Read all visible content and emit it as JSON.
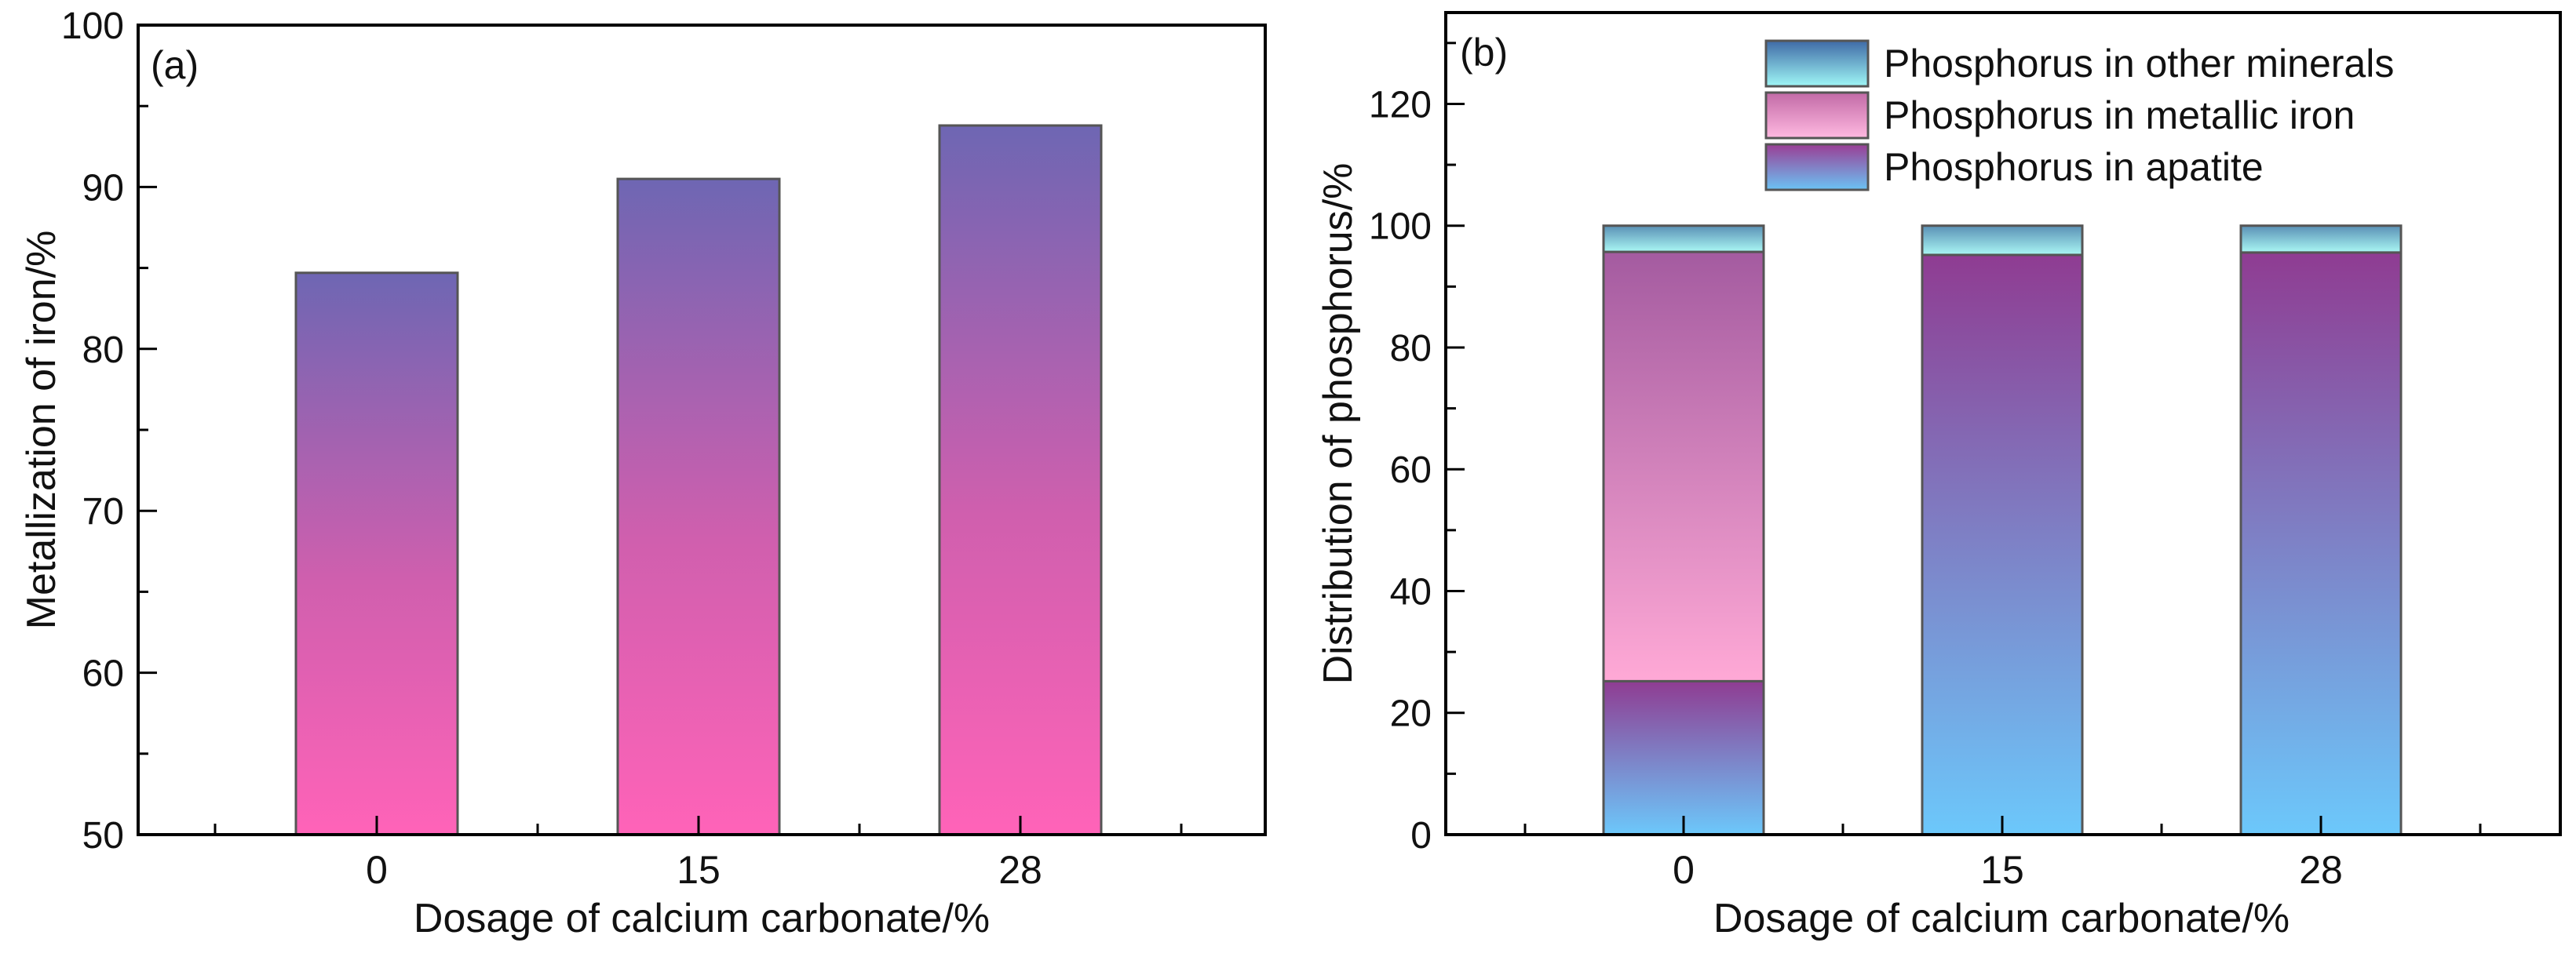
{
  "colors": {
    "frame": "#000000",
    "bar_edge": "#555555",
    "metal_top": "#6e66b3",
    "metal_mid": "#d05fae",
    "metal_bottom": "#ff63b8",
    "apatite_top": "#8f3c92",
    "apatite_bottom": "#6cc8fb",
    "metallic_top": "#a45ba0",
    "metallic_bottom": "#ffa9d6",
    "other_top": "#5a90b5",
    "other_bottom": "#aaf7f4",
    "legend_apatite_top": "#9a3e95",
    "legend_apatite_bottom": "#6bc3f4",
    "legend_metallic_top": "#c26aa6",
    "legend_metallic_bottom": "#ffb9e0",
    "legend_other_top": "#3f6aa6",
    "legend_other_bottom": "#9ff7f6"
  },
  "chart_data": [
    {
      "type": "bar",
      "panel_label": "(a)",
      "categories": [
        "0",
        "15",
        "28"
      ],
      "values": [
        84.7,
        90.5,
        93.8
      ],
      "title": "",
      "xlabel": "Dosage of calcium carbonate/%",
      "ylabel": "Metallization of iron/%",
      "ylim": [
        50,
        100
      ],
      "yticks": [
        "50",
        "60",
        "70",
        "80",
        "90",
        "100"
      ],
      "grid": false,
      "legend": null
    },
    {
      "type": "bar",
      "stacked": true,
      "panel_label": "(b)",
      "categories": [
        "0",
        "15",
        "28"
      ],
      "series": [
        {
          "key": "apatite",
          "name": "Phosphorus in apatite",
          "values": [
            25.2,
            95.2,
            95.6
          ]
        },
        {
          "key": "metallic",
          "name": "Phosphorus in metallic iron",
          "values": [
            70.5,
            0,
            0
          ]
        },
        {
          "key": "other",
          "name": "Phosphorus in other minerals",
          "values": [
            4.3,
            4.8,
            4.4
          ]
        }
      ],
      "title": "",
      "xlabel": "Dosage of calcium carbonate/%",
      "ylabel": "Distribution of phosphorus/%",
      "ylim": [
        0,
        135
      ],
      "yticks": [
        "0",
        "20",
        "40",
        "60",
        "80",
        "100",
        "120"
      ],
      "grid": false,
      "legend_position": "top-right",
      "legend_order": [
        "other",
        "metallic",
        "apatite"
      ]
    }
  ]
}
